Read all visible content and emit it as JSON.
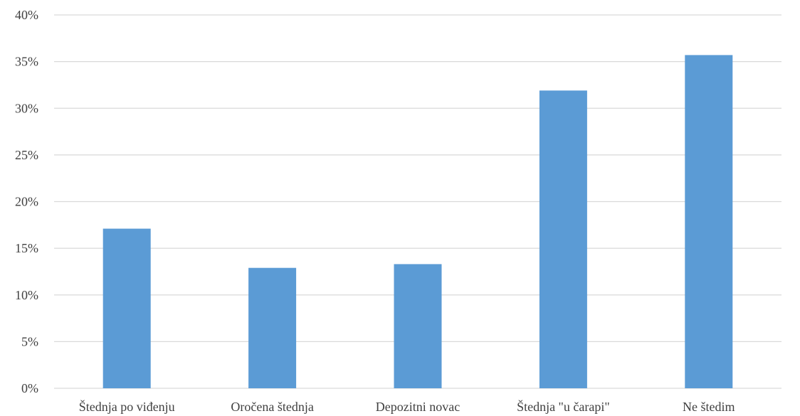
{
  "chart_data": {
    "type": "bar",
    "categories": [
      "Štednja po viđenju",
      "Oročena štednja",
      "Depozitni novac",
      "Štednja \"u čarapi\"",
      "Ne štedim"
    ],
    "values": [
      17.1,
      12.9,
      13.3,
      31.9,
      35.7
    ],
    "unit": "%",
    "ylim": [
      0,
      40
    ],
    "yticks": [
      0,
      5,
      10,
      15,
      20,
      25,
      30,
      35,
      40
    ],
    "ytick_labels": [
      "0%",
      "5%",
      "10%",
      "15%",
      "20%",
      "25%",
      "30%",
      "35%",
      "40%"
    ],
    "title": "",
    "xlabel": "",
    "ylabel": "",
    "grid": true,
    "legend": "none",
    "bar_color": "#5b9bd5",
    "grid_color": "#d9d9d9",
    "label_color": "#404040"
  }
}
